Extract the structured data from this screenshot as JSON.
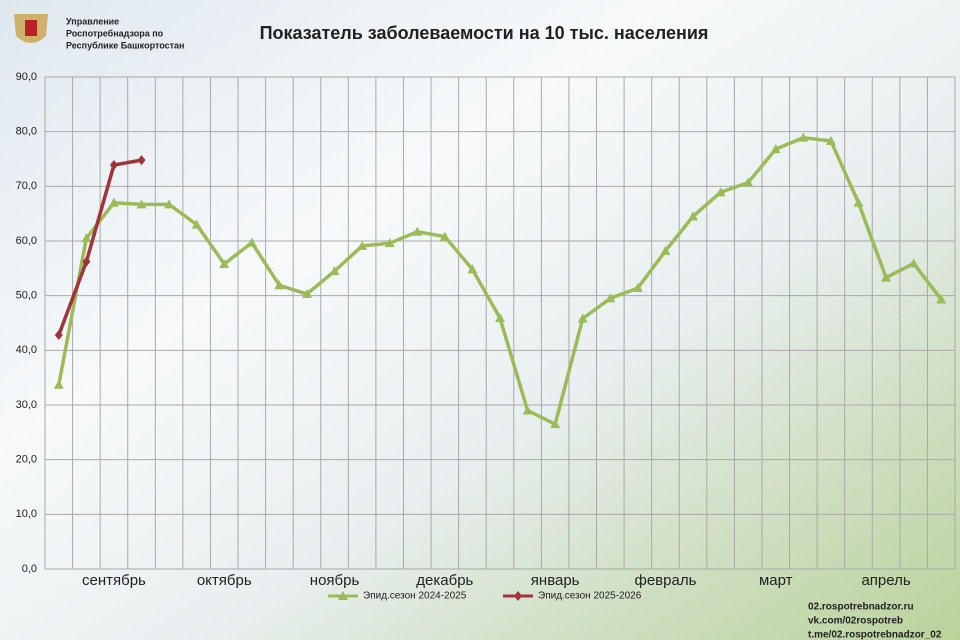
{
  "header": {
    "org": [
      "Управление",
      "Роспотребнадзора по",
      "Республике Башкортостан"
    ]
  },
  "footer": [
    "02.rospotrebnadzor.ru",
    "vk.com/02rospotreb",
    "t.me/02.rospotrebnadzor_02"
  ],
  "chart_data": {
    "type": "line",
    "title": "Показатель заболеваемости на 10 тыс. населения",
    "categories": [
      null,
      null,
      "сентябрь",
      null,
      null,
      null,
      "октябрь",
      null,
      null,
      null,
      "ноябрь",
      null,
      null,
      null,
      "декабрь",
      null,
      null,
      null,
      "январь",
      null,
      null,
      null,
      "февраль",
      null,
      null,
      null,
      "март",
      null,
      null,
      null,
      "апрель",
      null,
      null
    ],
    "series": [
      {
        "name": "Эпид.сезон 2024-2025",
        "color": "#9bbb59",
        "marker": "triangle",
        "values": [
          33.7,
          60.5,
          67.0,
          66.7,
          66.7,
          63.0,
          55.8,
          59.7,
          51.9,
          50.3,
          54.5,
          59.1,
          59.6,
          61.7,
          60.8,
          54.8,
          45.9,
          29.0,
          26.5,
          45.8,
          49.5,
          51.4,
          58.2,
          64.5,
          68.9,
          70.7,
          76.8,
          78.9,
          78.3,
          67.0,
          53.3,
          55.9,
          49.3
        ]
      },
      {
        "name": "Эпид.сезон 2025-2026",
        "color": "#a0343a",
        "marker": "diamond",
        "values": [
          42.8,
          56.2,
          73.9,
          74.8,
          null,
          null,
          null,
          null,
          null,
          null,
          null,
          null,
          null,
          null,
          null,
          null,
          null,
          null,
          null,
          null,
          null,
          null,
          null,
          null,
          null,
          null,
          null,
          null,
          null,
          null,
          null,
          null,
          null
        ]
      }
    ],
    "ylim": [
      0,
      90
    ],
    "yticks": [
      {
        "value": 0,
        "label": "0,0"
      },
      {
        "value": 10,
        "label": "10,0"
      },
      {
        "value": 20,
        "label": "20,0"
      },
      {
        "value": 30,
        "label": "30,0"
      },
      {
        "value": 40,
        "label": "40,0"
      },
      {
        "value": 50,
        "label": "50,0"
      },
      {
        "value": 60,
        "label": "60,0"
      },
      {
        "value": 70,
        "label": "70,0"
      },
      {
        "value": 80,
        "label": "80,0"
      },
      {
        "value": 90,
        "label": "90,0"
      }
    ],
    "grid": true
  }
}
